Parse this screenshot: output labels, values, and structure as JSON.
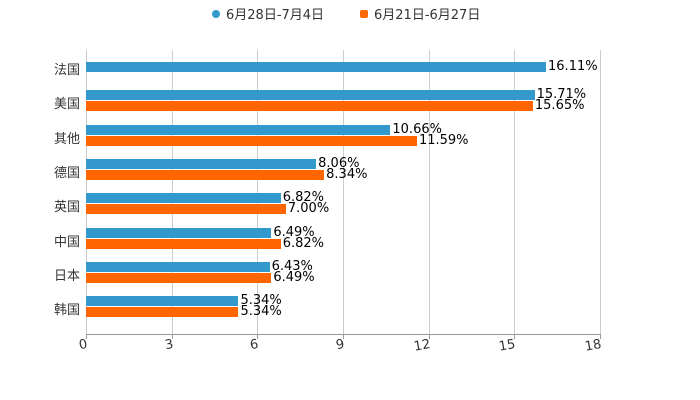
{
  "legend": [
    {
      "label": "6月28日-7月4日",
      "color": "#3399cc",
      "shape": "circle"
    },
    {
      "label": "6月21日-6月27日",
      "color": "#ff6600",
      "shape": "square"
    }
  ],
  "axis": {
    "ticks": [
      "0",
      "3",
      "6",
      "9",
      "12",
      "15",
      "18"
    ]
  },
  "categories": [
    "法国",
    "美国",
    "其他",
    "德国",
    "英国",
    "中国",
    "日本",
    "韩国"
  ],
  "labels": {
    "s1": [
      "16.11%",
      "15.71%",
      "10.66%",
      "8.06%",
      "6.82%",
      "6.49%",
      "6.43%",
      "5.34%"
    ],
    "s2": [
      "",
      "15.65%",
      "11.59%",
      "8.34%",
      "7.00%",
      "6.82%",
      "6.49%",
      "5.34%"
    ]
  },
  "chart_data": {
    "type": "bar",
    "orientation": "horizontal",
    "categories": [
      "法国",
      "美国",
      "其他",
      "德国",
      "英国",
      "中国",
      "日本",
      "韩国"
    ],
    "series": [
      {
        "name": "6月28日-7月4日",
        "color": "#3399cc",
        "values": [
          16.11,
          15.71,
          10.66,
          8.06,
          6.82,
          6.49,
          6.43,
          5.34
        ]
      },
      {
        "name": "6月21日-6月27日",
        "color": "#ff6600",
        "values": [
          null,
          15.65,
          11.59,
          8.34,
          7.0,
          6.82,
          6.49,
          5.34
        ]
      }
    ],
    "title": "",
    "xlabel": "",
    "ylabel": "",
    "xlim": [
      0,
      18
    ],
    "xticks": [
      0,
      3,
      6,
      9,
      12,
      15,
      18
    ],
    "grid": true,
    "legend_position": "top",
    "value_format": "percent"
  }
}
